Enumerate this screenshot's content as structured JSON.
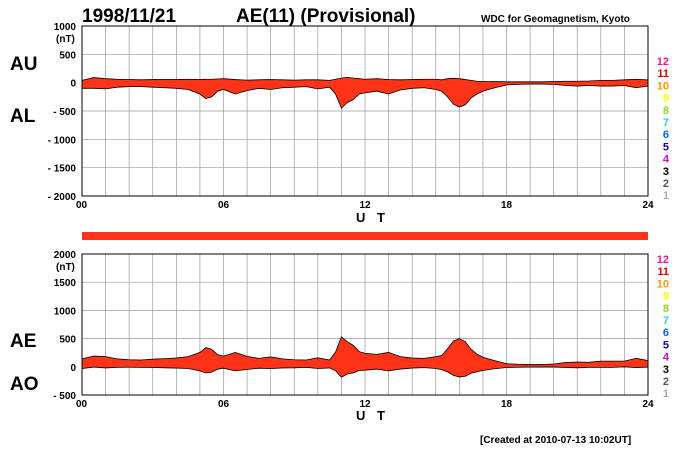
{
  "header": {
    "date": "1998/11/21",
    "title": "AE(11) (Provisional)",
    "source": "WDC for Geomagnetism, Kyoto"
  },
  "footer": {
    "created": "[Created at 2010-07-13 10:02UT]"
  },
  "colors": {
    "fill": "#ff3318",
    "grid": "#9a9a9a",
    "bar": "#ff3318"
  },
  "legend_scale": {
    "labels": [
      "12",
      "11",
      "10",
      "9",
      "8",
      "7",
      "6",
      "5",
      "4",
      "3",
      "2",
      "1"
    ],
    "colors": [
      "#ff1493",
      "#e00000",
      "#ff9900",
      "#ffff00",
      "#9acd32",
      "#33ccff",
      "#0066ff",
      "#1a0099",
      "#cc00cc",
      "#000000",
      "#555555",
      "#aaaaaa"
    ]
  },
  "chart_data": [
    {
      "type": "area",
      "series_names": [
        "AU",
        "AL"
      ],
      "unit_label": "(nT)",
      "xlabel": "U T",
      "xticks": [
        "00",
        "06",
        "12",
        "18",
        "24"
      ],
      "xlim": [
        0,
        24
      ],
      "ylim": [
        -2000,
        1000
      ],
      "yticks": [
        "1000",
        "500",
        "0",
        "- 500",
        "- 1000",
        "- 1500",
        "- 2000"
      ],
      "ytick_values": [
        1000,
        500,
        0,
        -500,
        -1000,
        -1500,
        -2000
      ],
      "grid": true,
      "x": [
        0,
        0.5,
        1,
        1.5,
        2,
        2.5,
        3,
        3.5,
        4,
        4.5,
        5,
        5.25,
        5.5,
        5.75,
        6,
        6.5,
        7,
        7.5,
        8,
        8.5,
        9,
        9.5,
        10,
        10.5,
        10.75,
        11,
        11.25,
        11.5,
        11.75,
        12,
        12.5,
        13,
        13.5,
        14,
        14.5,
        15,
        15.25,
        15.5,
        15.75,
        16,
        16.25,
        16.5,
        16.75,
        17,
        17.5,
        18,
        18.5,
        19,
        19.5,
        20,
        20.5,
        21,
        21.5,
        22,
        22.5,
        23,
        23.5,
        24
      ],
      "AU": [
        40,
        90,
        70,
        60,
        55,
        50,
        55,
        55,
        55,
        60,
        55,
        60,
        60,
        65,
        70,
        55,
        45,
        50,
        55,
        50,
        45,
        50,
        50,
        40,
        60,
        80,
        95,
        80,
        70,
        60,
        70,
        55,
        50,
        55,
        60,
        60,
        50,
        70,
        75,
        70,
        55,
        40,
        25,
        20,
        20,
        15,
        15,
        15,
        15,
        20,
        25,
        25,
        30,
        40,
        40,
        50,
        60,
        50
      ],
      "AL": [
        -100,
        -100,
        -110,
        -80,
        -70,
        -70,
        -80,
        -90,
        -100,
        -120,
        -200,
        -280,
        -250,
        -150,
        -120,
        -200,
        -140,
        -100,
        -120,
        -90,
        -80,
        -70,
        -110,
        -80,
        -200,
        -450,
        -350,
        -300,
        -200,
        -180,
        -150,
        -200,
        -130,
        -100,
        -90,
        -120,
        -150,
        -250,
        -380,
        -430,
        -390,
        -270,
        -200,
        -150,
        -90,
        -40,
        -30,
        -25,
        -25,
        -30,
        -50,
        -60,
        -50,
        -60,
        -60,
        -50,
        -90,
        -60
      ]
    },
    {
      "type": "area",
      "series_names": [
        "AE",
        "AO"
      ],
      "unit_label": "(nT)",
      "xlabel": "U T",
      "xticks": [
        "00",
        "06",
        "12",
        "18",
        "24"
      ],
      "xlim": [
        0,
        24
      ],
      "ylim": [
        -500,
        2000
      ],
      "yticks": [
        "2000",
        "1500",
        "1000",
        "500",
        "0",
        "- 500"
      ],
      "ytick_values": [
        2000,
        1500,
        1000,
        500,
        0,
        -500
      ],
      "grid": true,
      "x": [
        0,
        0.5,
        1,
        1.5,
        2,
        2.5,
        3,
        3.5,
        4,
        4.5,
        5,
        5.25,
        5.5,
        5.75,
        6,
        6.5,
        7,
        7.5,
        8,
        8.5,
        9,
        9.5,
        10,
        10.5,
        10.75,
        11,
        11.25,
        11.5,
        11.75,
        12,
        12.5,
        13,
        13.5,
        14,
        14.5,
        15,
        15.25,
        15.5,
        15.75,
        16,
        16.25,
        16.5,
        16.75,
        17,
        17.5,
        18,
        18.5,
        19,
        19.5,
        20,
        20.5,
        21,
        21.5,
        22,
        22.5,
        23,
        23.5,
        24
      ],
      "AE": [
        140,
        190,
        180,
        140,
        125,
        120,
        135,
        145,
        155,
        180,
        255,
        340,
        310,
        215,
        190,
        255,
        185,
        150,
        175,
        140,
        125,
        120,
        160,
        120,
        260,
        530,
        445,
        380,
        270,
        240,
        220,
        255,
        180,
        155,
        150,
        180,
        200,
        320,
        455,
        500,
        445,
        310,
        225,
        170,
        110,
        55,
        45,
        40,
        40,
        50,
        75,
        85,
        80,
        100,
        100,
        100,
        150,
        110
      ],
      "AO": [
        -30,
        -5,
        -20,
        -10,
        -8,
        -10,
        -12,
        -18,
        -22,
        -30,
        -72,
        -110,
        -95,
        -42,
        -25,
        -72,
        -48,
        -25,
        -32,
        -20,
        -18,
        -10,
        -30,
        -20,
        -70,
        -185,
        -128,
        -110,
        -65,
        -60,
        -40,
        -72,
        -40,
        -22,
        -15,
        -30,
        -50,
        -90,
        -152,
        -180,
        -168,
        -115,
        -88,
        -65,
        -35,
        -12,
        -8,
        -5,
        -5,
        -5,
        -12,
        -18,
        -10,
        -10,
        -10,
        0,
        -15,
        -5
      ]
    }
  ]
}
